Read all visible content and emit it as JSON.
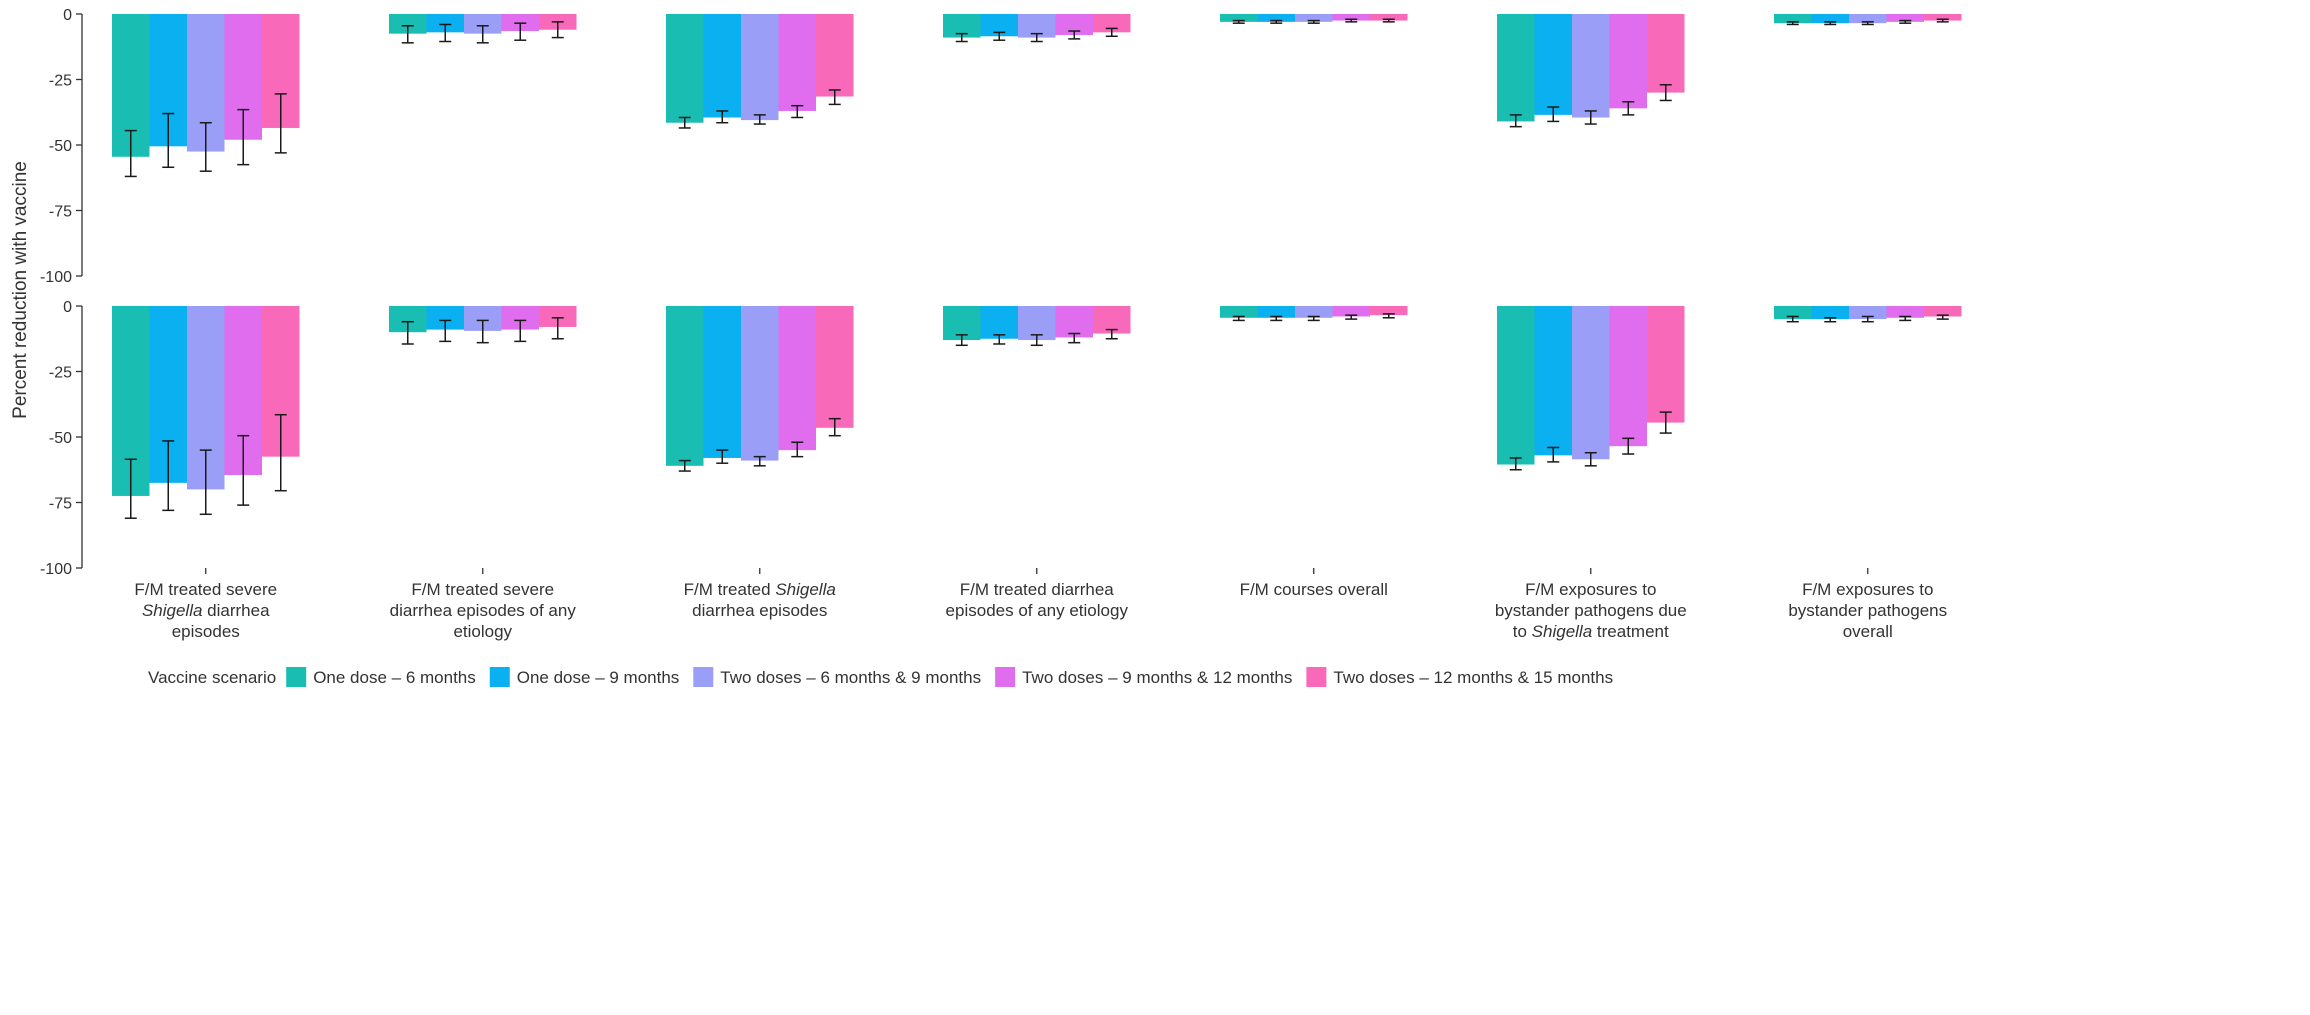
{
  "chart_data": {
    "type": "bar",
    "ylabel": "Percent reduction with vaccine",
    "ylim": [
      -100,
      0
    ],
    "yticks": [
      0,
      -25,
      -50,
      -75,
      -100
    ],
    "ytick_labels": [
      "0",
      "-25",
      "-50",
      "-75",
      "-100"
    ],
    "grid": false,
    "legend_position": "bottom",
    "legend_title": "Vaccine scenario",
    "categories": [
      {
        "lines": [
          {
            "text": "F/M treated severe"
          },
          {
            "text": "Shigella",
            "italic": true,
            "after": " diarrhea"
          },
          {
            "text": "episodes"
          }
        ]
      },
      {
        "lines": [
          {
            "text": "F/M treated severe"
          },
          {
            "text": "diarrhea episodes of any"
          },
          {
            "text": "etiology"
          }
        ]
      },
      {
        "lines": [
          {
            "before": "F/M treated ",
            "text": "Shigella",
            "italic": true
          },
          {
            "text": "diarrhea episodes"
          }
        ]
      },
      {
        "lines": [
          {
            "text": "F/M treated diarrhea"
          },
          {
            "text": "episodes of any etiology"
          }
        ]
      },
      {
        "lines": [
          {
            "text": "F/M courses overall"
          }
        ]
      },
      {
        "lines": [
          {
            "text": "F/M exposures to"
          },
          {
            "text": "bystander pathogens due"
          },
          {
            "before": "to ",
            "text": "Shigella",
            "italic": true,
            "after": " treatment"
          }
        ]
      },
      {
        "lines": [
          {
            "text": "F/M exposures to"
          },
          {
            "text": "bystander pathogens"
          },
          {
            "text": "overall"
          }
        ]
      }
    ],
    "series": [
      {
        "name": "One dose – 6 months",
        "color": "#19BDB2"
      },
      {
        "name": "One dose – 9 months",
        "color": "#0AB0F0"
      },
      {
        "name": "Two doses – 6 months & 9 months",
        "color": "#9A9EF6"
      },
      {
        "name": "Two doses – 9 months & 12 months",
        "color": "#DF6DEE"
      },
      {
        "name": "Two doses – 12 months & 15 months",
        "color": "#F969B9"
      }
    ],
    "panels": [
      {
        "values": [
          [
            -54.5,
            -50.5,
            -52.5,
            -48.0,
            -43.5
          ],
          [
            -7.5,
            -7.0,
            -7.5,
            -6.5,
            -6.0
          ],
          [
            -41.5,
            -39.5,
            -40.5,
            -37.0,
            -31.5
          ],
          [
            -9.0,
            -8.5,
            -9.0,
            -8.0,
            -7.0
          ],
          [
            -3.0,
            -3.0,
            -3.0,
            -2.5,
            -2.5
          ],
          [
            -41.0,
            -38.5,
            -39.5,
            -36.0,
            -30.0
          ],
          [
            -3.5,
            -3.5,
            -3.5,
            -3.0,
            -2.5
          ]
        ],
        "errors": [
          [
            [
              -62.0,
              -44.5
            ],
            [
              -58.5,
              -38.0
            ],
            [
              -60.0,
              -41.5
            ],
            [
              -57.5,
              -36.5
            ],
            [
              -53.0,
              -30.5
            ]
          ],
          [
            [
              -11.0,
              -4.5
            ],
            [
              -10.5,
              -4.0
            ],
            [
              -11.0,
              -4.5
            ],
            [
              -10.0,
              -3.5
            ],
            [
              -9.0,
              -3.0
            ]
          ],
          [
            [
              -43.5,
              -39.5
            ],
            [
              -41.5,
              -37.0
            ],
            [
              -42.0,
              -38.5
            ],
            [
              -39.5,
              -35.0
            ],
            [
              -34.5,
              -29.0
            ]
          ],
          [
            [
              -10.5,
              -7.5
            ],
            [
              -10.0,
              -7.0
            ],
            [
              -10.5,
              -7.5
            ],
            [
              -9.5,
              -6.5
            ],
            [
              -8.5,
              -5.5
            ]
          ],
          [
            [
              -3.5,
              -2.5
            ],
            [
              -3.5,
              -2.5
            ],
            [
              -3.5,
              -2.5
            ],
            [
              -3.0,
              -2.0
            ],
            [
              -3.0,
              -2.0
            ]
          ],
          [
            [
              -43.0,
              -38.5
            ],
            [
              -41.0,
              -35.5
            ],
            [
              -42.0,
              -37.0
            ],
            [
              -38.5,
              -33.5
            ],
            [
              -33.0,
              -27.0
            ]
          ],
          [
            [
              -4.0,
              -3.0
            ],
            [
              -4.0,
              -3.0
            ],
            [
              -4.0,
              -3.0
            ],
            [
              -3.5,
              -2.5
            ],
            [
              -3.0,
              -2.0
            ]
          ]
        ]
      },
      {
        "values": [
          [
            -72.5,
            -67.5,
            -70.0,
            -64.5,
            -57.5
          ],
          [
            -10.0,
            -9.0,
            -9.5,
            -9.0,
            -8.0
          ],
          [
            -61.0,
            -58.0,
            -59.0,
            -55.0,
            -46.5
          ],
          [
            -13.0,
            -12.5,
            -13.0,
            -12.0,
            -10.5
          ],
          [
            -4.5,
            -4.5,
            -4.5,
            -4.0,
            -3.5
          ],
          [
            -60.5,
            -57.0,
            -58.5,
            -53.5,
            -44.5
          ],
          [
            -5.0,
            -5.0,
            -5.0,
            -4.5,
            -4.0
          ]
        ],
        "errors": [
          [
            [
              -81.0,
              -58.5
            ],
            [
              -78.0,
              -51.5
            ],
            [
              -79.5,
              -55.0
            ],
            [
              -76.0,
              -49.5
            ],
            [
              -70.5,
              -41.5
            ]
          ],
          [
            [
              -14.5,
              -6.0
            ],
            [
              -13.5,
              -5.5
            ],
            [
              -14.0,
              -5.5
            ],
            [
              -13.5,
              -5.5
            ],
            [
              -12.5,
              -4.5
            ]
          ],
          [
            [
              -63.0,
              -59.0
            ],
            [
              -60.0,
              -55.0
            ],
            [
              -61.0,
              -57.5
            ],
            [
              -57.5,
              -52.0
            ],
            [
              -49.5,
              -43.0
            ]
          ],
          [
            [
              -15.0,
              -11.0
            ],
            [
              -14.5,
              -11.0
            ],
            [
              -15.0,
              -11.0
            ],
            [
              -14.0,
              -10.5
            ],
            [
              -12.5,
              -9.0
            ]
          ],
          [
            [
              -5.5,
              -4.0
            ],
            [
              -5.5,
              -4.0
            ],
            [
              -5.5,
              -4.0
            ],
            [
              -5.0,
              -3.5
            ],
            [
              -4.5,
              -3.0
            ]
          ],
          [
            [
              -62.5,
              -58.0
            ],
            [
              -59.5,
              -54.0
            ],
            [
              -61.0,
              -56.0
            ],
            [
              -56.5,
              -50.5
            ],
            [
              -48.5,
              -40.5
            ]
          ],
          [
            [
              -6.0,
              -4.0
            ],
            [
              -6.0,
              -4.5
            ],
            [
              -6.0,
              -4.0
            ],
            [
              -5.5,
              -4.0
            ],
            [
              -5.0,
              -3.5
            ]
          ]
        ]
      }
    ]
  }
}
